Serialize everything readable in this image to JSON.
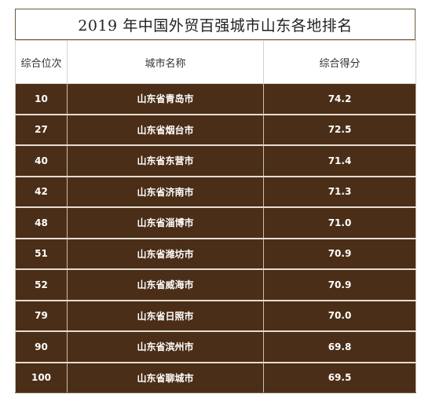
{
  "title": "2019 年中国外贸百强城市山东各地排名",
  "table": {
    "headers": [
      "综合位次",
      "城市名称",
      "综合得分"
    ],
    "rows": [
      {
        "rank": "10",
        "city": "山东省青岛市",
        "score": "74.2"
      },
      {
        "rank": "27",
        "city": "山东省烟台市",
        "score": "72.5"
      },
      {
        "rank": "40",
        "city": "山东省东营市",
        "score": "71.4"
      },
      {
        "rank": "42",
        "city": "山东省济南市",
        "score": "71.3"
      },
      {
        "rank": "48",
        "city": "山东省淄博市",
        "score": "71.0"
      },
      {
        "rank": "51",
        "city": "山东省潍坊市",
        "score": "70.9"
      },
      {
        "rank": "52",
        "city": "山东省威海市",
        "score": "70.9"
      },
      {
        "rank": "79",
        "city": "山东省日照市",
        "score": "70.0"
      },
      {
        "rank": "90",
        "city": "山东省滨州市",
        "score": "69.8"
      },
      {
        "rank": "100",
        "city": "山东省聊城市",
        "score": "69.5"
      }
    ]
  },
  "colors": {
    "row_background": "#4b2e17",
    "row_text": "#ffffff",
    "header_background": "#ffffff"
  }
}
